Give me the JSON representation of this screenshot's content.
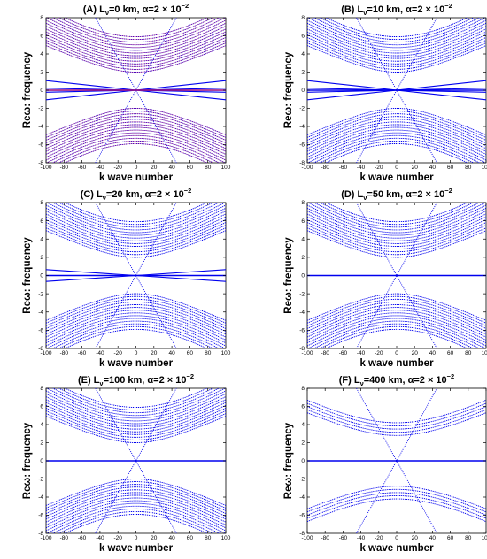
{
  "chart_data": [
    {
      "type": "scatter",
      "panel_label": "(A)",
      "title_parts": [
        "(A)  L",
        "ν",
        "=0  km,  α=2 × 10",
        "−2"
      ],
      "lv_km": 0,
      "alpha": 0.02,
      "xlabel": "k wave number",
      "ylabel": "Reω:  frequency",
      "xlim": [
        -100,
        100
      ],
      "ylim": [
        -8,
        8
      ],
      "xticks": [
        "-100",
        "-80",
        "-60",
        "-40",
        "-20",
        "0",
        "20",
        "40",
        "60",
        "80",
        "100"
      ],
      "yticks": [
        "8",
        "6",
        "4",
        "2",
        "0",
        "-2",
        "-4",
        "-6",
        "-8"
      ],
      "grid": false,
      "series": [
        {
          "color": "#0000ee",
          "gravity_branches": {
            "min_freq_first": 2.0,
            "spacing": 0.3,
            "count": 14,
            "curvature": 0.0045
          },
          "mixed_branches": {
            "slopes": [
              0.0105,
              -0.0105,
              0.0022,
              -0.0022
            ]
          },
          "zero_line": true
        },
        {
          "color": "#cc1a66",
          "overlay": true
        }
      ]
    },
    {
      "type": "scatter",
      "panel_label": "(B)",
      "title_parts": [
        "(B)  L",
        "ν",
        "=10  km,  α=2 × 10",
        "−2"
      ],
      "lv_km": 10,
      "alpha": 0.02,
      "xlabel": "k wave number",
      "ylabel": "Reω:  frequency",
      "xlim": [
        -100,
        100
      ],
      "ylim": [
        -8,
        8
      ],
      "xticks": [
        "-100",
        "-80",
        "-60",
        "-40",
        "-20",
        "0",
        "20",
        "40",
        "60",
        "80",
        "100"
      ],
      "yticks": [
        "8",
        "6",
        "4",
        "2",
        "0",
        "-2",
        "-4",
        "-6",
        "-8"
      ],
      "grid": false,
      "series": [
        {
          "color": "#0000ee",
          "gravity_branches": {
            "min_freq_first": 2.0,
            "spacing": 0.3,
            "count": 14,
            "curvature": 0.0045
          },
          "mixed_branches": {
            "slopes": [
              0.0105,
              -0.0105,
              0.0022,
              -0.0022
            ]
          },
          "zero_line": true
        }
      ]
    },
    {
      "type": "scatter",
      "panel_label": "(C)",
      "title_parts": [
        "(C)  L",
        "ν",
        "=20  km,  α=2 × 10",
        "−2"
      ],
      "lv_km": 20,
      "alpha": 0.02,
      "xlabel": "k wave number",
      "ylabel": "Reω:  frequency",
      "xlim": [
        -100,
        100
      ],
      "ylim": [
        -8,
        8
      ],
      "xticks": [
        "-100",
        "-80",
        "-60",
        "-40",
        "-20",
        "0",
        "20",
        "40",
        "60",
        "80",
        "100"
      ],
      "yticks": [
        "8",
        "6",
        "4",
        "2",
        "0",
        "-2",
        "-4",
        "-6",
        "-8"
      ],
      "grid": false,
      "series": [
        {
          "color": "#0000ee",
          "gravity_branches": {
            "min_freq_first": 2.0,
            "spacing": 0.3,
            "count": 14,
            "curvature": 0.0045
          },
          "mixed_branches": {
            "slopes": [
              0.0065,
              -0.0065
            ]
          },
          "zero_line": true
        }
      ]
    },
    {
      "type": "scatter",
      "panel_label": "(D)",
      "title_parts": [
        "(D)  L",
        "ν",
        "=50  km,  α=2 × 10",
        "−2"
      ],
      "lv_km": 50,
      "alpha": 0.02,
      "xlabel": "k wave number",
      "ylabel": "Reω:  frequency",
      "xlim": [
        -100,
        100
      ],
      "ylim": [
        -8,
        8
      ],
      "xticks": [
        "-100",
        "-80",
        "-60",
        "-40",
        "-20",
        "0",
        "20",
        "40",
        "60",
        "80",
        "100"
      ],
      "yticks": [
        "8",
        "6",
        "4",
        "2",
        "0",
        "-2",
        "-4",
        "-6",
        "-8"
      ],
      "grid": false,
      "series": [
        {
          "color": "#0000ee",
          "gravity_branches": {
            "min_freq_first": 2.0,
            "spacing": 0.3,
            "count": 14,
            "curvature": 0.0045
          },
          "mixed_branches": {
            "slopes": []
          },
          "zero_line": true
        }
      ]
    },
    {
      "type": "scatter",
      "panel_label": "(E)",
      "title_parts": [
        "(E)  L",
        "ν",
        "=100  km,  α=2 × 10",
        "−2"
      ],
      "lv_km": 100,
      "alpha": 0.02,
      "xlabel": "k wave number",
      "ylabel": "Reω:  frequency",
      "xlim": [
        -100,
        100
      ],
      "ylim": [
        -8,
        8
      ],
      "xticks": [
        "-100",
        "-80",
        "-60",
        "-40",
        "-20",
        "0",
        "20",
        "40",
        "60",
        "80",
        "100"
      ],
      "yticks": [
        "8",
        "6",
        "4",
        "2",
        "0",
        "-2",
        "-4",
        "-6",
        "-8"
      ],
      "grid": false,
      "series": [
        {
          "color": "#0000ee",
          "gravity_branches": {
            "min_freq_first": 2.0,
            "spacing": 0.3,
            "count": 14,
            "curvature": 0.0045
          },
          "mixed_branches": {
            "slopes": []
          },
          "zero_line": true
        }
      ]
    },
    {
      "type": "scatter",
      "panel_label": "(F)",
      "title_parts": [
        "(F)  L",
        "ν",
        "=400  km,  α=2 × 10",
        "−2"
      ],
      "lv_km": 400,
      "alpha": 0.02,
      "xlabel": "k wave number",
      "ylabel": "Reω:  frequency",
      "xlim": [
        -100,
        100
      ],
      "ylim": [
        -8,
        8
      ],
      "xticks": [
        "-100",
        "-80",
        "-60",
        "-40",
        "-20",
        "0",
        "20",
        "40",
        "60",
        "80",
        "100"
      ],
      "yticks": [
        "8",
        "6",
        "4",
        "2",
        "0",
        "-2",
        "-4",
        "-6",
        "-8"
      ],
      "grid": false,
      "series": [
        {
          "color": "#0000ee",
          "gravity_branches": {
            "min_freq_first": 2.8,
            "spacing": 0.35,
            "count": 5,
            "curvature": 0.0045
          },
          "mixed_branches": {
            "slopes": []
          },
          "zero_line": true
        }
      ]
    }
  ]
}
